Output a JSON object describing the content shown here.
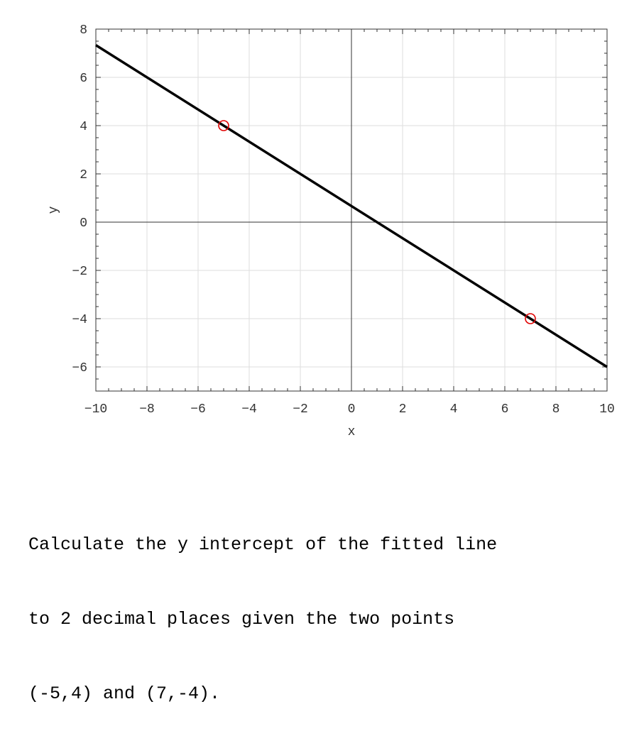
{
  "chart_data": {
    "type": "line",
    "title": "",
    "xlabel": "x",
    "ylabel": "y",
    "xlim": [
      -10,
      10
    ],
    "ylim": [
      -7,
      8
    ],
    "xticks": [
      -10,
      -8,
      -6,
      -4,
      -2,
      0,
      2,
      4,
      6,
      8,
      10
    ],
    "yticks": [
      -6,
      -4,
      -2,
      0,
      2,
      4,
      6,
      8
    ],
    "grid": true,
    "line": {
      "slope": -0.6667,
      "intercept": 0.6667,
      "color": "#000000"
    },
    "points": [
      {
        "x": -5,
        "y": 4
      },
      {
        "x": 7,
        "y": -4
      }
    ],
    "point_color": "#e00000"
  },
  "question": {
    "lines": [
      "Calculate the y intercept of the fitted line",
      "to 2 decimal places given the two points",
      "(-5,4) and (7,-4)."
    ]
  }
}
